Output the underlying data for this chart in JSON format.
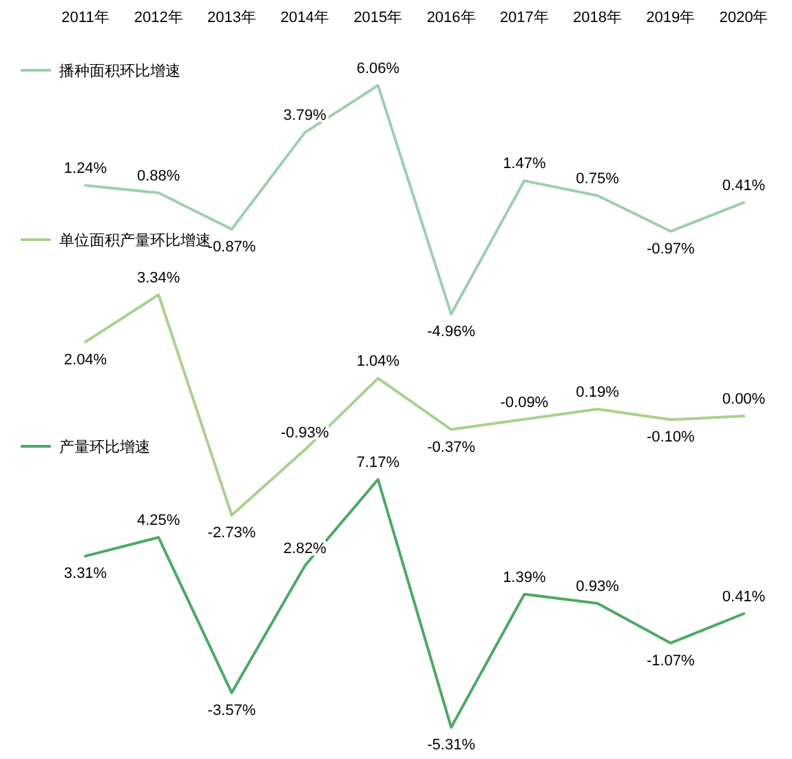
{
  "chart_data": [
    {
      "type": "line",
      "categories": [
        "2011年",
        "2012年",
        "2013年",
        "2014年",
        "2015年",
        "2016年",
        "2017年",
        "2018年",
        "2019年",
        "2020年"
      ],
      "legend": "top left",
      "tick_labels": "x",
      "series": [
        {
          "name": "播种面积环比增速",
          "color": "#9ccfae",
          "values": [
            1.24,
            0.88,
            -0.87,
            3.79,
            6.06,
            -4.96,
            1.47,
            0.75,
            -0.97,
            0.41
          ],
          "value_labels": [
            "1.24%",
            "0.88%",
            "-0.87%",
            "3.79%",
            "6.06%",
            "-4.96%",
            "1.47%",
            "0.75%",
            "-0.97%",
            "0.41%"
          ]
        }
      ]
    },
    {
      "type": "line",
      "categories": [
        "2011年",
        "2012年",
        "2013年",
        "2014年",
        "2015年",
        "2016年",
        "2017年",
        "2018年",
        "2019年",
        "2020年"
      ],
      "legend": "top left",
      "tick_labels": false,
      "series": [
        {
          "name": "单位面积产量环比增速",
          "color": "#a9d18e",
          "values": [
            2.04,
            3.34,
            -2.73,
            -0.93,
            1.04,
            -0.37,
            -0.09,
            0.19,
            -0.1,
            0
          ],
          "value_labels": [
            "2.04%",
            "3.34%",
            "-2.73%",
            "-0.93%",
            "1.04%",
            "-0.37%",
            "-0.09%",
            "0.19%",
            "-0.10%",
            "0.00%"
          ]
        }
      ]
    },
    {
      "type": "line",
      "categories": [
        "2011年",
        "2012年",
        "2013年",
        "2014年",
        "2015年",
        "2016年",
        "2017年",
        "2018年",
        "2019年",
        "2020年"
      ],
      "legend": "top left",
      "tick_labels": false,
      "series": [
        {
          "name": "产量环比增速",
          "color": "#4ea866",
          "values": [
            3.31,
            4.25,
            -3.57,
            2.82,
            7.17,
            -5.31,
            1.39,
            0.93,
            -1.07,
            0.41
          ],
          "value_labels": [
            "3.31%",
            "4.25%",
            "-3.57%",
            "2.82%",
            "7.17%",
            "-5.31%",
            "1.39%",
            "0.93%",
            "-1.07%",
            "0.41%"
          ]
        }
      ]
    }
  ]
}
